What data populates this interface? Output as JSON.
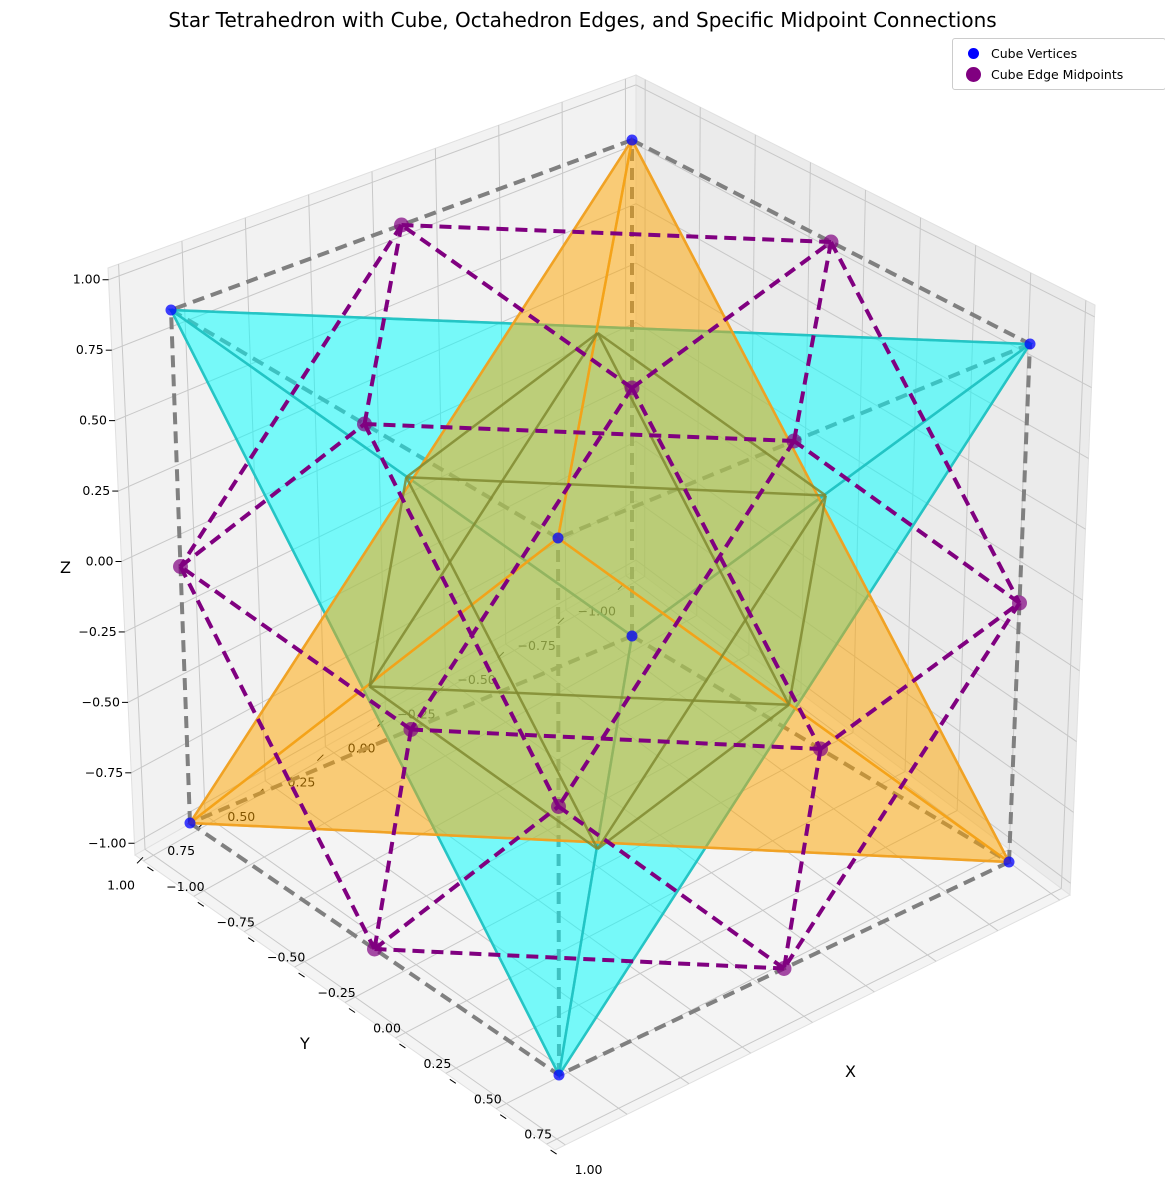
{
  "title": "Star Tetrahedron with Cube, Octahedron Edges, and Specific Midpoint Connections",
  "legend": [
    {
      "label": "Cube Vertices",
      "color": "#0000ff"
    },
    {
      "label": "Cube Edge Midpoints",
      "color": "#800080"
    }
  ],
  "axes": {
    "x_label": "X",
    "y_label": "Y",
    "z_label": "Z",
    "x_ticks": [
      "−1.00",
      "−0.75",
      "−0.50",
      "−0.25",
      "0.00",
      "0.25",
      "0.50",
      "0.75",
      "1.00"
    ],
    "y_ticks": [
      "−1.00",
      "−0.75",
      "−0.50",
      "−0.25",
      "0.00",
      "0.25",
      "0.50",
      "0.75",
      "1.00"
    ],
    "z_ticks": [
      "−1.00",
      "−0.75",
      "−0.50",
      "−0.25",
      "0.00",
      "0.25",
      "0.50",
      "0.75",
      "1.00"
    ]
  },
  "colors": {
    "cube_edges": "#808080",
    "tetra_a_fill": "#00ffff",
    "tetra_a_edge": "#20c0c0",
    "tetra_b_fill": "#ffa500",
    "tetra_b_edge": "#f0a020",
    "octa_edges": "#808a30",
    "midpoint_links": "#800080",
    "vertex_marker": "#0000ff",
    "midpoint_marker": "#800080"
  }
}
